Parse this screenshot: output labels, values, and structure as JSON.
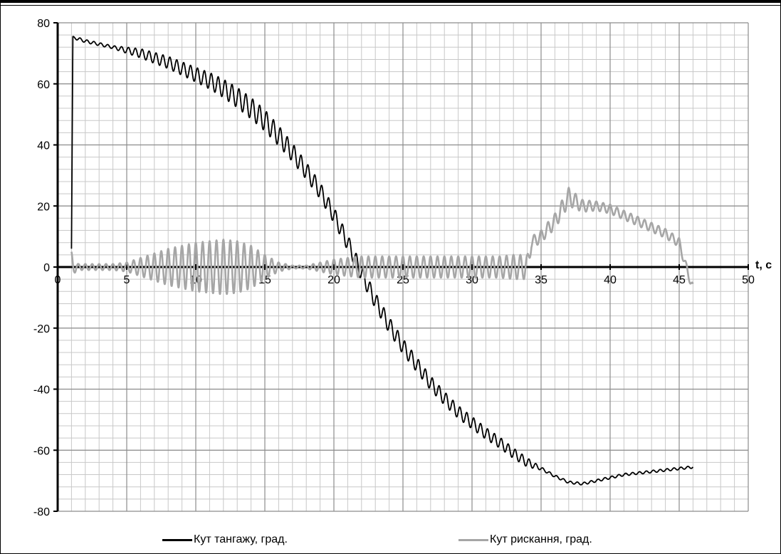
{
  "chart_data": {
    "type": "line",
    "title": "",
    "xlabel": "t, c",
    "ylabel": "",
    "xlim": [
      0,
      50
    ],
    "ylim": [
      -80,
      80
    ],
    "x_major_step": 5,
    "x_minor_step": 1,
    "y_major_step": 20,
    "y_minor_step": 4,
    "grid": true,
    "x_ticks": [
      "0",
      "5",
      "10",
      "15",
      "20",
      "25",
      "30",
      "35",
      "40",
      "45",
      "50"
    ],
    "y_ticks": [
      "80",
      "60",
      "40",
      "20",
      "0",
      "-20",
      "-40",
      "-60",
      "-80"
    ],
    "legend_position": "bottom",
    "series": [
      {
        "name": "Кут тангажу, град.",
        "color": "#000000",
        "x": [
          1,
          1.1,
          1.3,
          2,
          3,
          4,
          5,
          6,
          7,
          8,
          9,
          10,
          11,
          12,
          13,
          14,
          15,
          16,
          17,
          18,
          19,
          20,
          21,
          22,
          23,
          24,
          25,
          26,
          27,
          28,
          29,
          30,
          31,
          32,
          33,
          34,
          35,
          36,
          37,
          38,
          39,
          40,
          41,
          42,
          43,
          44,
          45,
          46
        ],
        "y": [
          6,
          75,
          75,
          74,
          73,
          72,
          71,
          70,
          68.5,
          67,
          65,
          63,
          61,
          58.5,
          55.5,
          52,
          48,
          43,
          37.5,
          31.5,
          25,
          17,
          8,
          -2,
          -11,
          -19,
          -26,
          -32,
          -38,
          -43,
          -47.5,
          -51,
          -54.5,
          -57.5,
          -61,
          -64,
          -66,
          -68.5,
          -70.5,
          -71,
          -70,
          -69,
          -68,
          -67.5,
          -67,
          -66.5,
          -66,
          -65.5
        ],
        "osc_amp": [
          0,
          0.5,
          0.5,
          0.5,
          0.5,
          0.5,
          1,
          1.5,
          1.8,
          2,
          2.2,
          2.4,
          2.7,
          3,
          3.3,
          3.5,
          3.5,
          3.3,
          3,
          2.8,
          2.7,
          2.6,
          2.6,
          2.6,
          2.6,
          2.6,
          2.5,
          2.4,
          2.3,
          2.2,
          2.1,
          2,
          1.9,
          1.8,
          1.7,
          1.5,
          0.5,
          0.4,
          0.4,
          0.4,
          0.4,
          0.4,
          0.4,
          0.4,
          0.4,
          0.4,
          0.4,
          0.4
        ]
      },
      {
        "name": "Кут рискання, град.",
        "color": "#a6a6a6",
        "x": [
          1,
          1.2,
          1.5,
          2,
          3,
          4,
          5,
          6,
          7,
          8,
          9,
          10,
          11,
          12,
          13,
          14,
          15,
          16,
          17,
          18,
          19,
          20,
          21,
          22,
          23,
          24,
          25,
          26,
          27,
          28,
          29,
          30,
          31,
          32,
          33,
          34,
          34.3,
          35,
          36,
          37,
          38,
          39,
          40,
          41,
          42,
          43,
          44,
          45,
          45.5,
          46
        ],
        "y": [
          0,
          0,
          0,
          0,
          0,
          0,
          0,
          0,
          0,
          0,
          0,
          0,
          0,
          0,
          0,
          0,
          0,
          0,
          0,
          0,
          0,
          0,
          0,
          0,
          0,
          0,
          0,
          0,
          0,
          0,
          0,
          0,
          0,
          0,
          0,
          0,
          8,
          10,
          15,
          23,
          20,
          20,
          19,
          17,
          15,
          13,
          11,
          8,
          0,
          -7
        ],
        "osc_amp": [
          5,
          2,
          1,
          1,
          1,
          1,
          1.5,
          3,
          4.5,
          6,
          7,
          8,
          8.5,
          9,
          8.5,
          7,
          4,
          1.5,
          0.5,
          0.5,
          1.5,
          2.5,
          3,
          3.5,
          3.5,
          3.5,
          3.5,
          3.5,
          3.5,
          3.5,
          3.5,
          3.5,
          3.5,
          3.5,
          4,
          4,
          2,
          2,
          2.5,
          3,
          2,
          1.5,
          1.5,
          1.5,
          1.5,
          1.5,
          1.5,
          1.5,
          1.5,
          1.5
        ]
      }
    ],
    "osc_period": 0.5
  }
}
